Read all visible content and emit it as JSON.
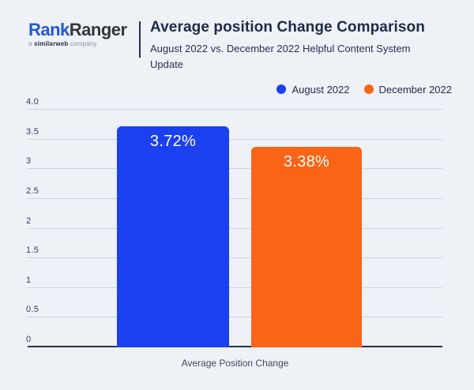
{
  "header": {
    "logo": {
      "brand_part1": "Rank",
      "brand_part2": "Ranger",
      "tagline_prefix": "a ",
      "tagline_brand": "similarweb",
      "tagline_suffix": " company"
    },
    "title": "Average position Change Comparison",
    "subtitle": "August 2022 vs. December 2022 Helpful Content System Update"
  },
  "legend": [
    {
      "label": "August 2022",
      "color": "#1b40f0"
    },
    {
      "label": "December 2022",
      "color": "#fa6416"
    }
  ],
  "chart_data": {
    "type": "bar",
    "title": "Average position Change Comparison",
    "subtitle": "August 2022 vs. December 2022 Helpful Content System Update",
    "categories": [
      "Average Position Change"
    ],
    "series": [
      {
        "name": "August 2022",
        "value": 3.72,
        "label": "3.72%",
        "color": "#1b40f0"
      },
      {
        "name": "December 2022",
        "value": 3.38,
        "label": "3.38%",
        "color": "#fa6416"
      }
    ],
    "xlabel": "Average Position Change",
    "ylabel": "",
    "ylim": [
      0,
      4.0
    ],
    "yticks": [
      {
        "v": 4.0,
        "label": "4.0"
      },
      {
        "v": 3.5,
        "label": "3.5"
      },
      {
        "v": 3.0,
        "label": "3"
      },
      {
        "v": 2.5,
        "label": "2.5"
      },
      {
        "v": 2.0,
        "label": "2"
      },
      {
        "v": 1.5,
        "label": "1.5"
      },
      {
        "v": 1.0,
        "label": "1"
      },
      {
        "v": 0.5,
        "label": "0.5"
      },
      {
        "v": 0.0,
        "label": "0"
      }
    ],
    "grid": true,
    "legend_position": "top-right"
  },
  "colors": {
    "background": "#eef1f6",
    "gridline": "#cdd1dc",
    "axis": "#233350",
    "text_dark": "#1e2a47",
    "logo_blue": "#2257d4",
    "logo_dark": "#33363b",
    "august_blue": "#1b40f0",
    "december_orange": "#fa6416"
  }
}
